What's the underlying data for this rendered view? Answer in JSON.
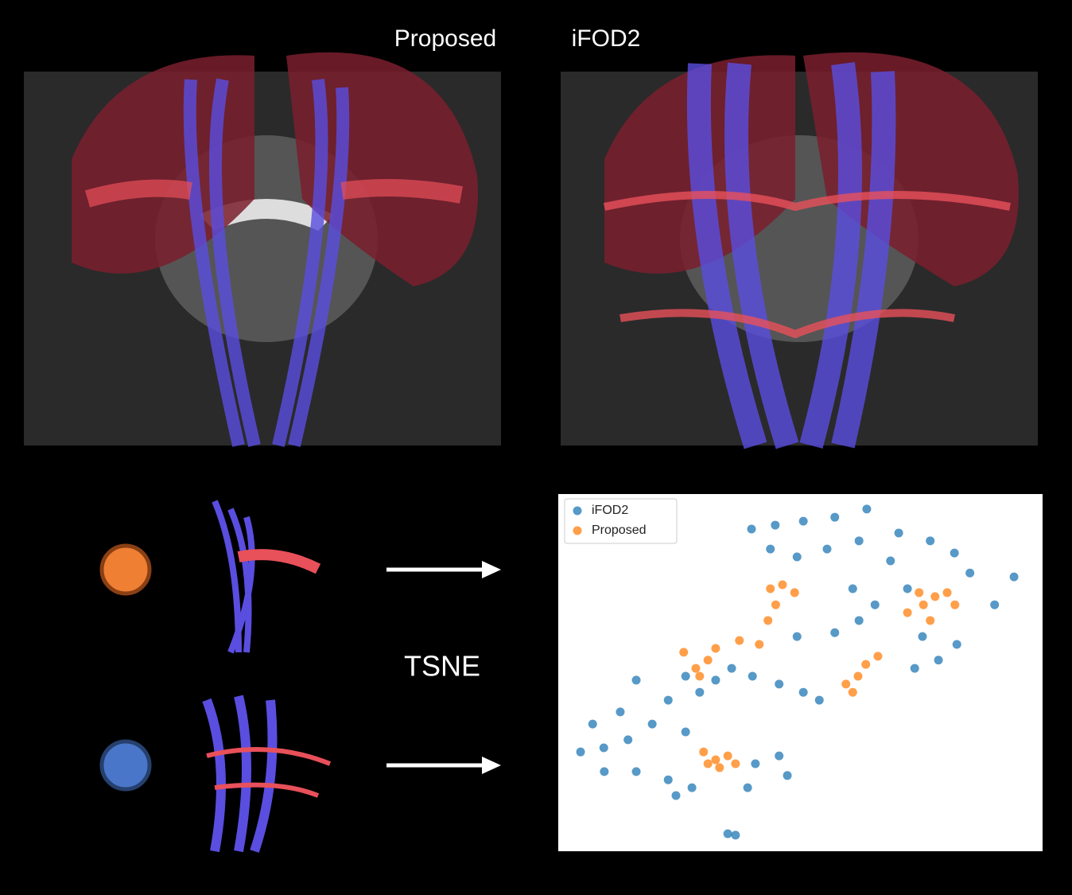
{
  "labels": {
    "left": "Proposed",
    "right": "iFOD2",
    "method": "TSNE"
  },
  "chart_data": {
    "type": "scatter",
    "xlim": [
      0,
      100
    ],
    "ylim": [
      0,
      100
    ],
    "legend": "upper left",
    "series": [
      {
        "name": "iFOD2",
        "color": "#1f77b4",
        "x": [
          39.9,
          44.8,
          50.6,
          57.1,
          63.7,
          70.3,
          76.8,
          81.8,
          43.8,
          49.3,
          55.5,
          62.1,
          68.6,
          85.0,
          94.1,
          90.1,
          60.8,
          65.4,
          72.1,
          75.2,
          78.5,
          73.6,
          82.3,
          62.1,
          57.1,
          49.3,
          35.8,
          40.1,
          45.6,
          50.6,
          53.9,
          32.5,
          26.3,
          16.1,
          22.7,
          12.8,
          7.1,
          9.4,
          4.6,
          14.4,
          19.4,
          26.3,
          9.5,
          16.1,
          22.7,
          27.6,
          40.7,
          45.6,
          39.1,
          47.3,
          35.0,
          36.6,
          24.3,
          29.2
        ],
        "y": [
          90.2,
          91.3,
          92.4,
          93.5,
          95.8,
          89.1,
          86.9,
          83.5,
          84.6,
          82.4,
          84.6,
          86.9,
          81.3,
          77.9,
          76.8,
          69.0,
          73.5,
          69.0,
          73.5,
          60.1,
          53.5,
          51.2,
          57.9,
          64.6,
          61.2,
          60.1,
          51.2,
          49.0,
          46.8,
          44.5,
          42.3,
          47.9,
          49.0,
          47.9,
          42.3,
          39.0,
          35.6,
          28.95,
          27.8,
          31.2,
          35.6,
          33.4,
          22.3,
          22.3,
          20.0,
          17.8,
          24.5,
          26.7,
          17.8,
          21.2,
          4.9,
          4.5,
          15.6,
          44.5
        ]
      },
      {
        "name": "Proposed",
        "color": "#ff7f0e",
        "x": [
          25.9,
          28.4,
          30.9,
          29.2,
          32.5,
          37.4,
          41.5,
          43.3,
          44.9,
          43.8,
          46.3,
          48.8,
          59.4,
          61.9,
          63.5,
          66.0,
          60.8,
          72.1,
          75.4,
          77.8,
          80.3,
          81.9,
          76.8,
          74.5,
          30.0,
          32.5,
          35.0,
          36.6,
          33.3,
          30.9
        ],
        "y": [
          55.7,
          51.2,
          53.5,
          49.0,
          56.8,
          59.0,
          57.9,
          64.6,
          69.0,
          73.5,
          74.6,
          72.4,
          46.8,
          49.0,
          52.3,
          54.6,
          44.5,
          66.8,
          69.0,
          71.3,
          72.4,
          69.0,
          64.6,
          72.4,
          27.8,
          25.6,
          26.7,
          24.5,
          23.4,
          24.5
        ]
      }
    ]
  }
}
